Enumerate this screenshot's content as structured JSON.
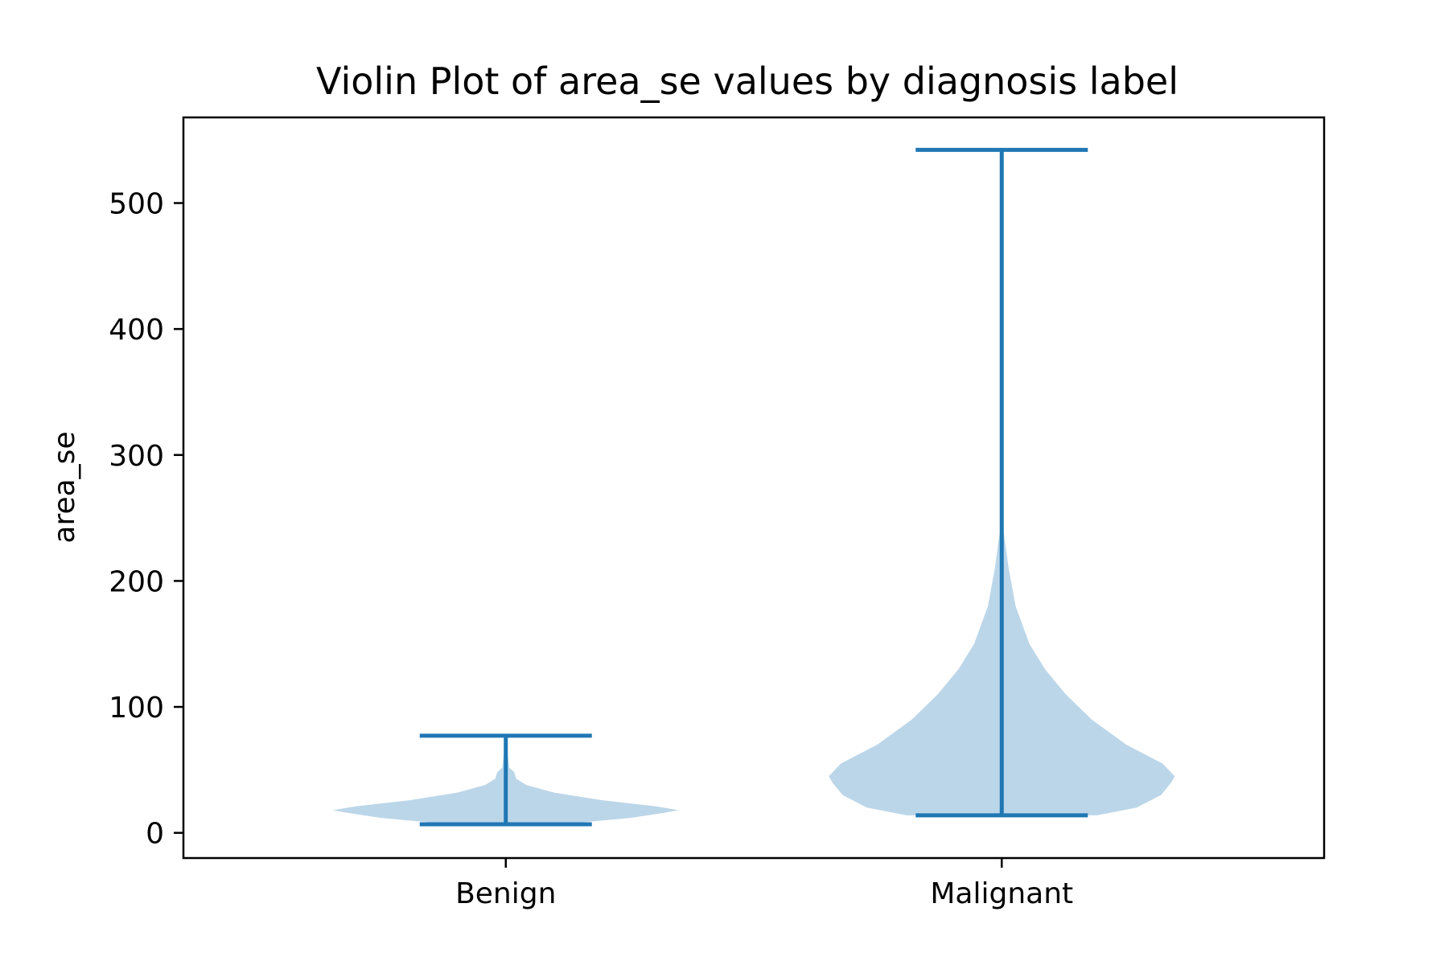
{
  "chart_data": {
    "type": "violin",
    "title": "Violin Plot of area_se values by diagnosis label",
    "xlabel": "",
    "ylabel": "area_se",
    "categories": [
      "Benign",
      "Malignant"
    ],
    "ylim": [
      -20,
      568
    ],
    "yticks": [
      0,
      100,
      200,
      300,
      400,
      500
    ],
    "grid": false,
    "legend": "none",
    "colors": {
      "body_fill": "#bcd6e9",
      "line": "#1f77b4",
      "axis": "#000000"
    },
    "violins": [
      {
        "category": "Benign",
        "min": 6.8,
        "max": 77.1,
        "profile": [
          [
            6.8,
            0.32
          ],
          [
            12,
            0.73
          ],
          [
            16,
            0.92
          ],
          [
            18,
            1.0
          ],
          [
            21,
            0.87
          ],
          [
            26,
            0.55
          ],
          [
            32,
            0.28
          ],
          [
            38,
            0.12
          ],
          [
            43,
            0.06
          ],
          [
            48,
            0.05
          ],
          [
            52,
            0.02
          ],
          [
            77.1,
            0.0
          ]
        ]
      },
      {
        "category": "Malignant",
        "min": 13.9,
        "max": 542.2,
        "profile": [
          [
            13.9,
            0.55
          ],
          [
            20,
            0.78
          ],
          [
            30,
            0.92
          ],
          [
            40,
            0.98
          ],
          [
            45,
            1.0
          ],
          [
            55,
            0.93
          ],
          [
            70,
            0.72
          ],
          [
            90,
            0.52
          ],
          [
            110,
            0.37
          ],
          [
            130,
            0.25
          ],
          [
            150,
            0.16
          ],
          [
            180,
            0.08
          ],
          [
            210,
            0.04
          ],
          [
            240,
            0.01
          ],
          [
            260,
            0.0
          ],
          [
            542.2,
            0.0
          ]
        ]
      }
    ]
  }
}
